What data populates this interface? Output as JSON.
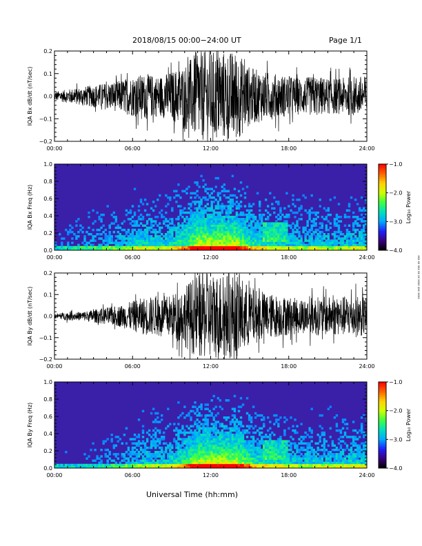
{
  "header": {
    "title": "2018/08/15  00:00−24:00 UT",
    "page": "Page 1/1"
  },
  "footer": {
    "xlabel": "Universal Time (hh:mm)"
  },
  "side_note": "xxx xx xxx xx xx xxxx xxx xxxx",
  "colors": {
    "trace": "#000000",
    "spectrogram_background": "#3a1fa8",
    "colorbar": [
      "#000000",
      "#3a0080",
      "#2020ff",
      "#00aaff",
      "#00e0c0",
      "#40ff40",
      "#d0ff00",
      "#ffd000",
      "#ff6000",
      "#ff0000"
    ]
  },
  "chart_data": [
    {
      "type": "line",
      "ylabel": "IQA Bx dB/dt (nT/sec)",
      "xlim": [
        0,
        24
      ],
      "ylim": [
        -0.2,
        0.2
      ],
      "yticks": [
        -0.2,
        -0.1,
        0.0,
        0.1,
        0.2
      ],
      "ytick_labels": [
        "−0.2",
        "−0.1",
        "0.0",
        "0.1",
        "0.2"
      ],
      "xticks": [
        0,
        6,
        12,
        18,
        24
      ],
      "xtick_labels": [
        "00:00",
        "06:00",
        "12:00",
        "18:00",
        "24:00"
      ],
      "envelope": {
        "hours": [
          0,
          1,
          2,
          3,
          4,
          5,
          6,
          7,
          8,
          9,
          10,
          11,
          12,
          13,
          14,
          15,
          16,
          17,
          18,
          19,
          20,
          21,
          22,
          23,
          24
        ],
        "amplitude": [
          0.02,
          0.03,
          0.04,
          0.05,
          0.06,
          0.07,
          0.09,
          0.1,
          0.09,
          0.11,
          0.14,
          0.2,
          0.2,
          0.2,
          0.2,
          0.13,
          0.11,
          0.1,
          0.09,
          0.08,
          0.09,
          0.08,
          0.08,
          0.09,
          0.09
        ]
      }
    },
    {
      "type": "heatmap",
      "ylabel": "IQA Bx Freq (Hz)",
      "xlim": [
        0,
        24
      ],
      "ylim": [
        0.0,
        1.0
      ],
      "yticks": [
        0.0,
        0.2,
        0.4,
        0.6,
        0.8,
        1.0
      ],
      "ytick_labels": [
        "0.0",
        "0.2",
        "0.4",
        "0.6",
        "0.8",
        "1.0"
      ],
      "xticks": [
        0,
        6,
        12,
        18,
        24
      ],
      "xtick_labels": [
        "00:00",
        "06:00",
        "12:00",
        "18:00",
        "24:00"
      ],
      "colorbar": {
        "label": "Log₁₀ Power",
        "range": [
          -4.0,
          -1.0
        ],
        "ticks": [
          -1.0,
          -2.0,
          -3.0,
          -4.0
        ],
        "tick_labels": [
          "−1.0",
          "−2.0",
          "−3.0",
          "−4.0"
        ]
      }
    },
    {
      "type": "line",
      "ylabel": "IQA By dB/dt (nT/sec)",
      "xlim": [
        0,
        24
      ],
      "ylim": [
        -0.2,
        0.2
      ],
      "yticks": [
        -0.2,
        -0.1,
        0.0,
        0.1,
        0.2
      ],
      "ytick_labels": [
        "−0.2",
        "−0.1",
        "0.0",
        "0.1",
        "0.2"
      ],
      "xticks": [
        0,
        6,
        12,
        18,
        24
      ],
      "xtick_labels": [
        "00:00",
        "06:00",
        "12:00",
        "18:00",
        "24:00"
      ],
      "envelope": {
        "hours": [
          0,
          1,
          2,
          3,
          4,
          5,
          6,
          7,
          8,
          9,
          10,
          11,
          12,
          13,
          14,
          15,
          16,
          17,
          18,
          19,
          20,
          21,
          22,
          23,
          24
        ],
        "amplitude": [
          0.01,
          0.02,
          0.02,
          0.03,
          0.04,
          0.05,
          0.07,
          0.09,
          0.09,
          0.1,
          0.14,
          0.2,
          0.2,
          0.2,
          0.2,
          0.14,
          0.11,
          0.1,
          0.09,
          0.08,
          0.09,
          0.09,
          0.09,
          0.1,
          0.09
        ]
      }
    },
    {
      "type": "heatmap",
      "ylabel": "IQA By Freq (Hz)",
      "xlim": [
        0,
        24
      ],
      "ylim": [
        0.0,
        1.0
      ],
      "yticks": [
        0.0,
        0.2,
        0.4,
        0.6,
        0.8,
        1.0
      ],
      "ytick_labels": [
        "0.0",
        "0.2",
        "0.4",
        "0.6",
        "0.8",
        "1.0"
      ],
      "xticks": [
        0,
        6,
        12,
        18,
        24
      ],
      "xtick_labels": [
        "00:00",
        "06:00",
        "12:00",
        "18:00",
        "24:00"
      ],
      "colorbar": {
        "label": "Log₁₀ Power",
        "range": [
          -4.0,
          -1.0
        ],
        "ticks": [
          -1.0,
          -2.0,
          -3.0,
          -4.0
        ],
        "tick_labels": [
          "−1.0",
          "−2.0",
          "−3.0",
          "−4.0"
        ]
      }
    }
  ]
}
